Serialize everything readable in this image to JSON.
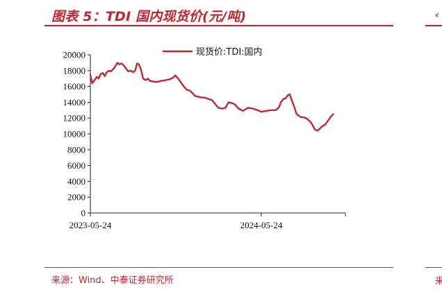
{
  "figure": {
    "title": "图表 5：TDI 国内现货价(元/吨)",
    "source": "来源：Wind、中泰证券研究所",
    "accent_color": "#c0262d",
    "right_glyph_top": "‹",
    "right_glyph_bottom": "来"
  },
  "chart_data": {
    "type": "line",
    "title": "",
    "xlabel": "",
    "ylabel": "",
    "ylim": [
      0,
      20000
    ],
    "yticks": [
      0,
      2000,
      4000,
      6000,
      8000,
      10000,
      12000,
      14000,
      16000,
      18000,
      20000
    ],
    "x_range": [
      "2023-05-24",
      "2024-11-20"
    ],
    "xticks": [
      "2023-05-24",
      "2024-05-24"
    ],
    "grid": false,
    "legend_position": "top-center",
    "series": [
      {
        "name": "现货价:TDI:国内",
        "color": "#c0262d",
        "points": [
          [
            "2023-05-24",
            17500
          ],
          [
            "2023-05-28",
            16400
          ],
          [
            "2023-06-02",
            16800
          ],
          [
            "2023-06-07",
            17200
          ],
          [
            "2023-06-11",
            17000
          ],
          [
            "2023-06-15",
            17600
          ],
          [
            "2023-06-20",
            17700
          ],
          [
            "2023-06-24",
            17300
          ],
          [
            "2023-06-28",
            17800
          ],
          [
            "2023-07-03",
            18000
          ],
          [
            "2023-07-07",
            17900
          ],
          [
            "2023-07-12",
            18200
          ],
          [
            "2023-07-17",
            18600
          ],
          [
            "2023-07-21",
            19000
          ],
          [
            "2023-07-25",
            18800
          ],
          [
            "2023-07-30",
            18900
          ],
          [
            "2023-08-03",
            18700
          ],
          [
            "2023-08-08",
            18300
          ],
          [
            "2023-08-13",
            17900
          ],
          [
            "2023-08-18",
            18000
          ],
          [
            "2023-08-23",
            17800
          ],
          [
            "2023-08-28",
            18000
          ],
          [
            "2023-09-01",
            18900
          ],
          [
            "2023-09-05",
            18800
          ],
          [
            "2023-09-09",
            18200
          ],
          [
            "2023-09-14",
            17000
          ],
          [
            "2023-09-19",
            16800
          ],
          [
            "2023-09-24",
            17000
          ],
          [
            "2023-09-29",
            16700
          ],
          [
            "2023-10-07",
            16600
          ],
          [
            "2023-10-15",
            16600
          ],
          [
            "2023-10-23",
            16700
          ],
          [
            "2023-11-01",
            16800
          ],
          [
            "2023-11-10",
            16900
          ],
          [
            "2023-11-17",
            17100
          ],
          [
            "2023-11-22",
            17400
          ],
          [
            "2023-11-28",
            17000
          ],
          [
            "2023-12-04",
            16500
          ],
          [
            "2023-12-10",
            16000
          ],
          [
            "2023-12-16",
            15600
          ],
          [
            "2023-12-22",
            15500
          ],
          [
            "2023-12-28",
            15200
          ],
          [
            "2024-01-03",
            14800
          ],
          [
            "2024-01-10",
            14700
          ],
          [
            "2024-01-17",
            14600
          ],
          [
            "2024-01-24",
            14600
          ],
          [
            "2024-02-01",
            14400
          ],
          [
            "2024-02-08",
            14300
          ],
          [
            "2024-02-15",
            13800
          ],
          [
            "2024-02-22",
            13300
          ],
          [
            "2024-03-01",
            13200
          ],
          [
            "2024-03-08",
            13300
          ],
          [
            "2024-03-15",
            14000
          ],
          [
            "2024-03-22",
            13900
          ],
          [
            "2024-03-29",
            13700
          ],
          [
            "2024-04-05",
            13200
          ],
          [
            "2024-04-15",
            12900
          ],
          [
            "2024-04-25",
            13300
          ],
          [
            "2024-05-06",
            13200
          ],
          [
            "2024-05-16",
            13000
          ],
          [
            "2024-05-24",
            12800
          ],
          [
            "2024-06-03",
            12900
          ],
          [
            "2024-06-13",
            13000
          ],
          [
            "2024-06-23",
            13000
          ],
          [
            "2024-06-30",
            13300
          ],
          [
            "2024-07-05",
            14000
          ],
          [
            "2024-07-10",
            14400
          ],
          [
            "2024-07-15",
            14500
          ],
          [
            "2024-07-20",
            14900
          ],
          [
            "2024-07-24",
            15000
          ],
          [
            "2024-07-28",
            14300
          ],
          [
            "2024-08-02",
            13500
          ],
          [
            "2024-08-07",
            12600
          ],
          [
            "2024-08-12",
            12300
          ],
          [
            "2024-08-18",
            12100
          ],
          [
            "2024-08-24",
            12100
          ],
          [
            "2024-08-30",
            11900
          ],
          [
            "2024-09-05",
            11600
          ],
          [
            "2024-09-10",
            11200
          ],
          [
            "2024-09-15",
            10600
          ],
          [
            "2024-09-20",
            10400
          ],
          [
            "2024-09-25",
            10600
          ],
          [
            "2024-09-30",
            10900
          ],
          [
            "2024-10-08",
            11200
          ],
          [
            "2024-10-14",
            11700
          ],
          [
            "2024-10-20",
            12200
          ],
          [
            "2024-10-25",
            12500
          ]
        ]
      }
    ]
  }
}
